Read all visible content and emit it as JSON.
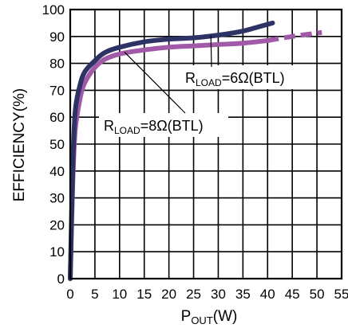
{
  "chart_data": {
    "type": "line",
    "xlabel": {
      "main": "P",
      "sub": "OUT",
      "tail": "(W)"
    },
    "ylabel": "EFFICIENCY(%)",
    "xlim": [
      0,
      55
    ],
    "ylim": [
      0,
      100
    ],
    "x_ticks": [
      "0",
      "5",
      "10",
      "15",
      "20",
      "25",
      "30",
      "35",
      "40",
      "45",
      "50",
      "55"
    ],
    "y_ticks": [
      "0",
      "10",
      "20",
      "30",
      "40",
      "50",
      "60",
      "70",
      "80",
      "90",
      "100"
    ],
    "grid": true,
    "series": [
      {
        "name": "R_LOAD=6Ω(BTL)",
        "label_main": "R",
        "label_sub": "LOAD",
        "label_tail": "=6Ω(BTL)",
        "color": "#2e3366",
        "x": [
          0,
          0.5,
          1,
          2,
          3,
          5,
          7,
          10,
          15,
          20,
          25,
          30,
          35,
          38,
          41
        ],
        "y": [
          0,
          40,
          62,
          72,
          77,
          81,
          84,
          86,
          88,
          89,
          89.5,
          90.5,
          92,
          93.5,
          95
        ]
      },
      {
        "name": "R_LOAD=8Ω(BTL)",
        "label_main": "R",
        "label_sub": "LOAD",
        "label_tail": "=8Ω(BTL)",
        "color": "#a05aa8",
        "x": [
          0,
          0.5,
          1,
          2,
          3,
          5,
          7,
          10,
          15,
          20,
          25,
          30,
          35,
          40,
          45,
          51
        ],
        "y": [
          0,
          35,
          55,
          67,
          73,
          78.5,
          81.5,
          83.5,
          85,
          86,
          86.5,
          87,
          87.5,
          88.5,
          90,
          91.5
        ],
        "dashed_from_x": 40
      }
    ]
  }
}
